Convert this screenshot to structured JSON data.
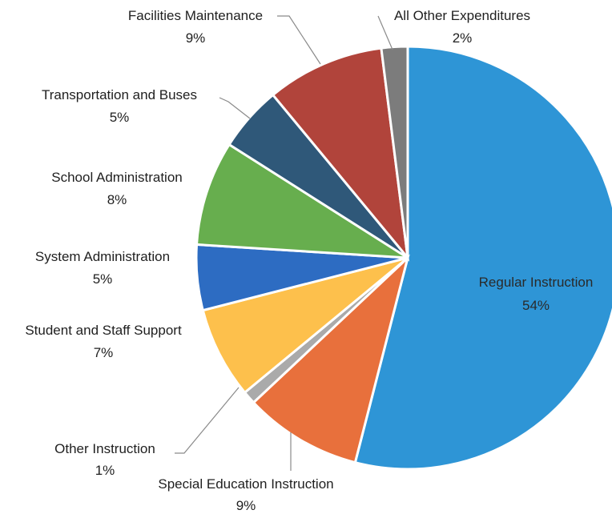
{
  "chart_data": {
    "type": "pie",
    "slices": [
      {
        "label": "Regular Instruction",
        "value_label": "54%",
        "value": 54,
        "color": "#2E95D6"
      },
      {
        "label": "Special Education Instruction",
        "value_label": "9%",
        "value": 9,
        "color": "#E8703C"
      },
      {
        "label": "Other Instruction",
        "value_label": "1%",
        "value": 1,
        "color": "#AAAAAA"
      },
      {
        "label": "Student and Staff Support",
        "value_label": "7%",
        "value": 7,
        "color": "#FDC04C"
      },
      {
        "label": "System Administration",
        "value_label": "5%",
        "value": 5,
        "color": "#2D6CC2"
      },
      {
        "label": "School Administration",
        "value_label": "8%",
        "value": 8,
        "color": "#67AE4E"
      },
      {
        "label": "Transportation and Buses",
        "value_label": "5%",
        "value": 5,
        "color": "#2F5879"
      },
      {
        "label": "Facilities Maintenance",
        "value_label": "9%",
        "value": 9,
        "color": "#B1443B"
      },
      {
        "label": "All Other Expenditures",
        "value_label": "2%",
        "value": 2,
        "color": "#7C7C7C"
      }
    ]
  }
}
